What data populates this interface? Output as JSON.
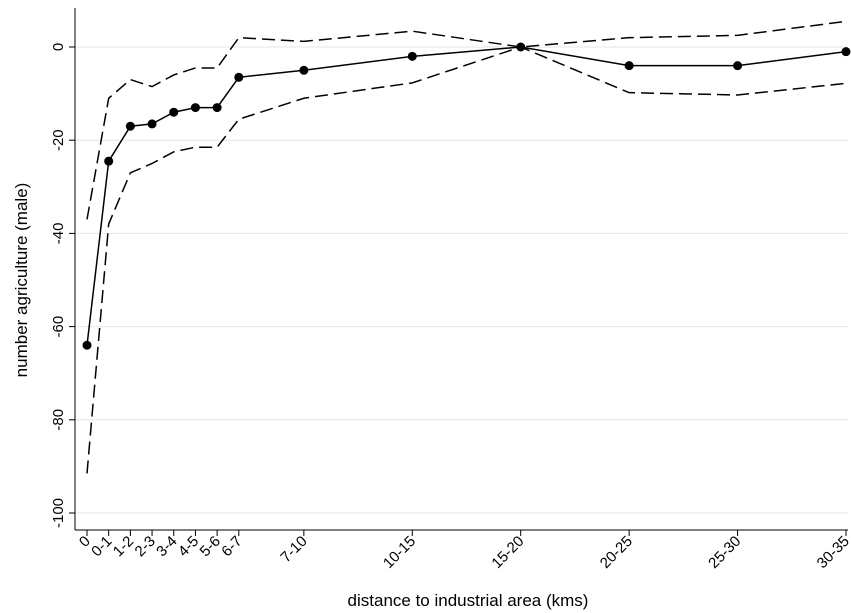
{
  "chart_data": {
    "type": "line",
    "xlabel": "distance to industrial area (kms)",
    "ylabel": "number agriculture (male)",
    "ylim": [
      -100,
      0
    ],
    "yticks": [
      0,
      -20,
      -40,
      -60,
      -80,
      -100
    ],
    "grid": true,
    "categories": [
      "0",
      "0-1",
      "1-2",
      "2-3",
      "3-4",
      "4-5",
      "5-6",
      "6-7",
      "7-10",
      "10-15",
      "15-20",
      "20-25",
      "25-30",
      "30-35"
    ],
    "x": [
      0,
      1,
      2,
      3,
      4,
      5,
      6,
      7,
      10,
      15,
      20,
      25,
      30,
      35
    ],
    "series": [
      {
        "role": "estimate",
        "values": [
          -64,
          -24.5,
          -17,
          -16.5,
          -14,
          -13,
          -13,
          -6.5,
          -5,
          -2,
          0,
          -4,
          -4,
          -1
        ]
      },
      {
        "role": "upper",
        "values": [
          -37,
          -11,
          -7,
          -8.5,
          -6,
          -4.5,
          -4.5,
          2,
          1.2,
          3.4,
          0,
          2,
          2.5,
          5.5
        ]
      },
      {
        "role": "lower",
        "values": [
          -91.5,
          -38,
          -27,
          -25,
          -22.5,
          -21.5,
          -21.5,
          -15.5,
          -11,
          -7.7,
          0,
          -9.8,
          -10.3,
          -7.8
        ]
      }
    ]
  }
}
